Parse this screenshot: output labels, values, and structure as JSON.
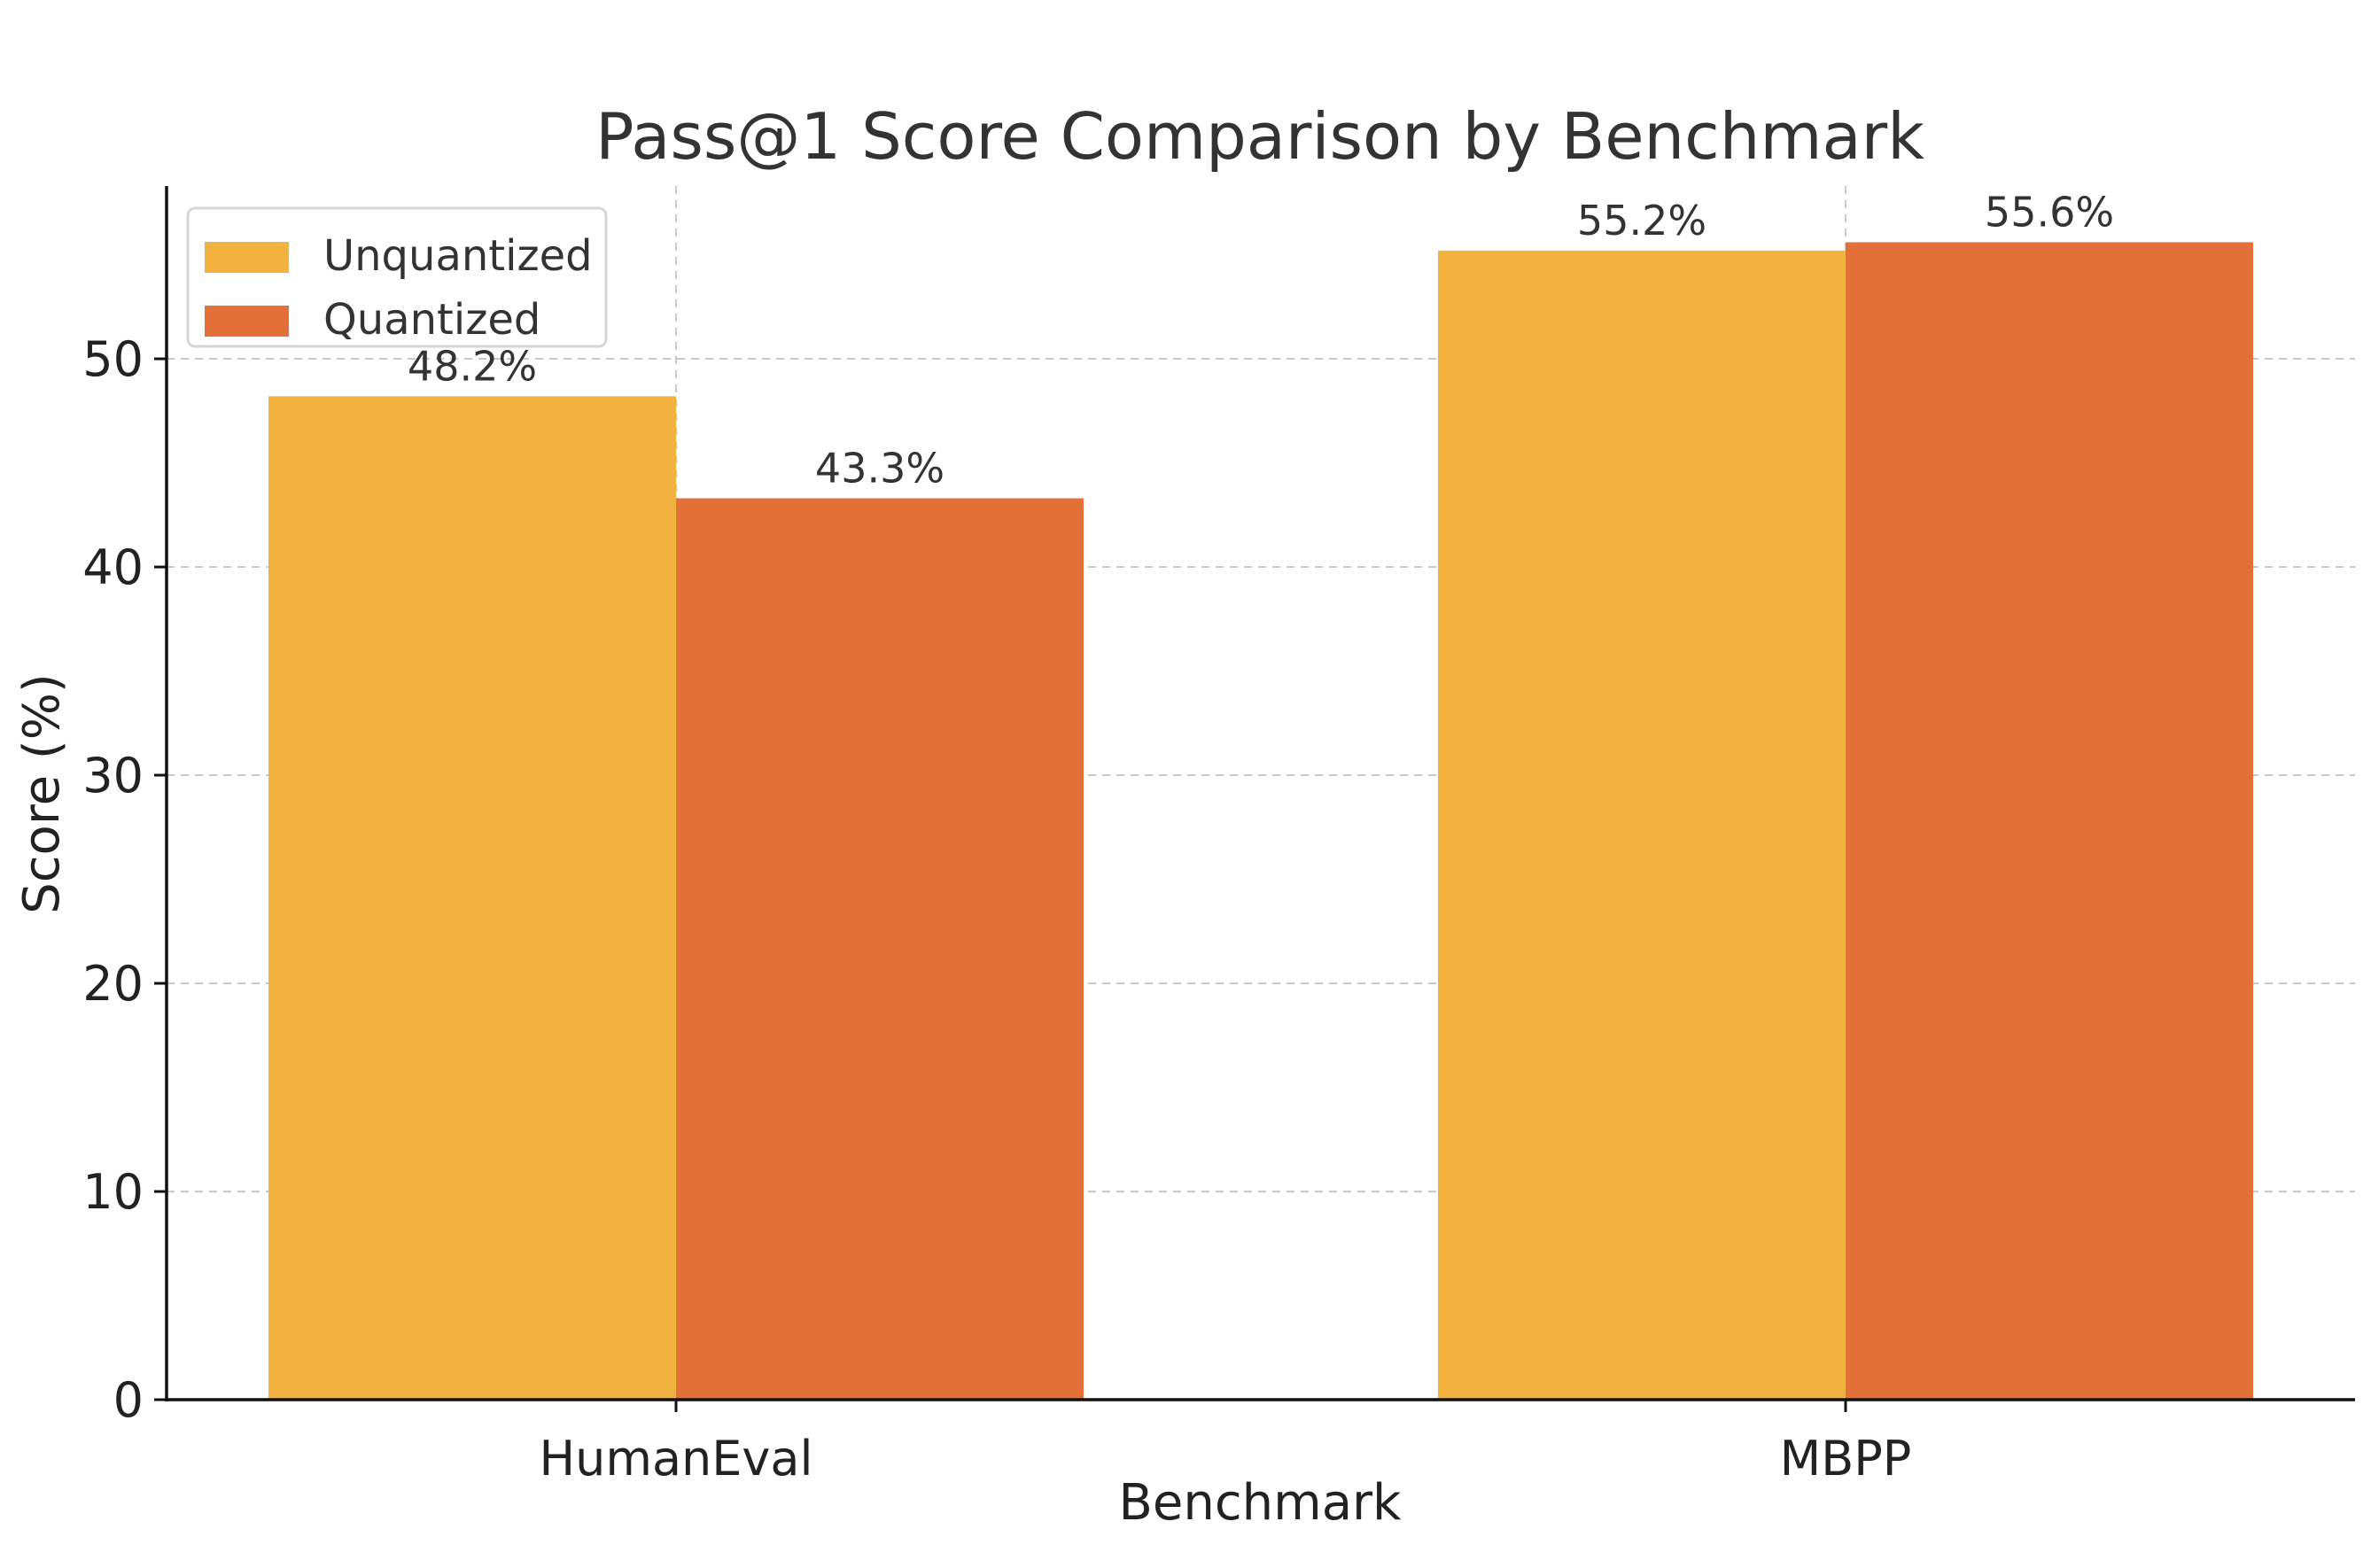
{
  "chart_data": {
    "type": "bar",
    "title": "Pass@1 Score Comparison by Benchmark",
    "xlabel": "Benchmark",
    "ylabel": "Score (%)",
    "categories": [
      "HumanEval",
      "MBPP"
    ],
    "series": [
      {
        "name": "Unquantized",
        "color": "#f2b23f",
        "values": [
          48.2,
          55.2
        ],
        "labels": [
          "48.2%",
          "55.2%"
        ]
      },
      {
        "name": "Quantized",
        "color": "#e27038",
        "values": [
          43.3,
          55.6
        ],
        "labels": [
          "43.3%",
          "55.6%"
        ]
      }
    ],
    "ylim": [
      0,
      58.3
    ],
    "yticks": [
      0,
      10,
      20,
      30,
      40,
      50
    ],
    "ytick_labels": [
      "0",
      "10",
      "20",
      "30",
      "40",
      "50"
    ],
    "grid": true,
    "legend_position": "top-left"
  }
}
